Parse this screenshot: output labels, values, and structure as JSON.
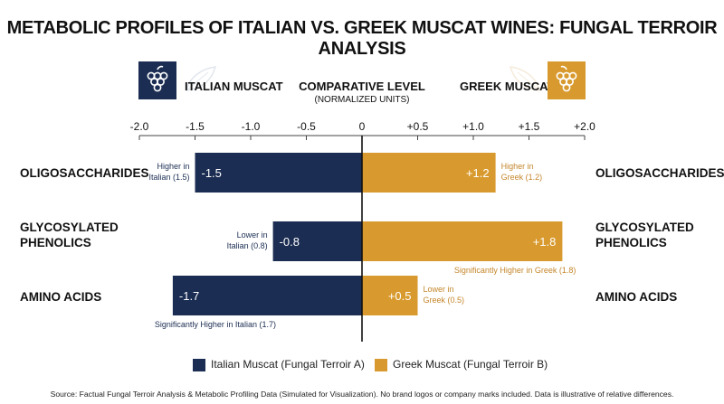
{
  "title": "METABOLIC PROFILES OF ITALIAN VS. GREEK MUSCAT WINES: FUNGAL TERROIR ANALYSIS",
  "header": {
    "italian_label": "ITALIAN MUSCAT",
    "greek_label": "GREEK MUSCAT",
    "center_label": "COMPARATIVE LEVEL",
    "center_sub": "(NORMALIZED UNITS)",
    "italian_icon": "grape-icon",
    "greek_icon": "grape-icon"
  },
  "colors": {
    "italian": "#1b2d52",
    "greek": "#d89a2e",
    "italian_text": "#1b2d52",
    "greek_text": "#c4862a"
  },
  "chart_data": {
    "type": "bar",
    "orientation": "horizontal-diverging",
    "title": "METABOLIC PROFILES OF ITALIAN VS. GREEK MUSCAT WINES: FUNGAL TERROIR ANALYSIS",
    "xlabel": "COMPARATIVE LEVEL (NORMALIZED UNITS)",
    "xlim": [
      -2.0,
      2.0
    ],
    "ticks": [
      -2.0,
      -1.5,
      -1.0,
      -0.5,
      0,
      0.5,
      1.0,
      1.5,
      2.0
    ],
    "tick_labels": [
      "-2.0",
      "-1.5",
      "-1.0",
      "-0.5",
      "0",
      "+0.5",
      "+1.0",
      "+1.5",
      "+2.0"
    ],
    "categories": [
      "OLIGOSACCHARIDES",
      "GLYCOSYLATED PHENOLICS",
      "AMINO ACIDS"
    ],
    "category_lines": [
      [
        "OLIGOSACCHARIDES"
      ],
      [
        "GLYCOSYLATED",
        "PHENOLICS"
      ],
      [
        "AMINO ACIDS"
      ]
    ],
    "series": [
      {
        "name": "Italian Muscat (Fungal Terroir A)",
        "values": [
          -1.5,
          -0.8,
          -1.7
        ],
        "value_labels": [
          "-1.5",
          "-0.8",
          "-1.7"
        ],
        "annotations": [
          [
            "Higher in",
            "Italian (1.5)"
          ],
          [
            "Lower in",
            "Italian (0.8)"
          ],
          [
            "Significantly Higher in Italian (1.7)"
          ]
        ]
      },
      {
        "name": "Greek Muscat (Fungal Terroir B)",
        "values": [
          1.2,
          1.8,
          0.5
        ],
        "value_labels": [
          "+1.2",
          "+1.8",
          "+0.5"
        ],
        "annotations": [
          [
            "Higher in",
            "Greek (1.2)"
          ],
          [
            "Significantly Higher in Greek (1.8)"
          ],
          [
            "Lower in",
            "Greek (0.5)"
          ]
        ]
      }
    ],
    "legend_position": "bottom",
    "grid": false
  },
  "source": "Source: Factual Fungal Terroir Analysis & Metabolic Profiling Data (Simulated for Visualization). No brand logos or company marks included. Data is illustrative of relative differences."
}
